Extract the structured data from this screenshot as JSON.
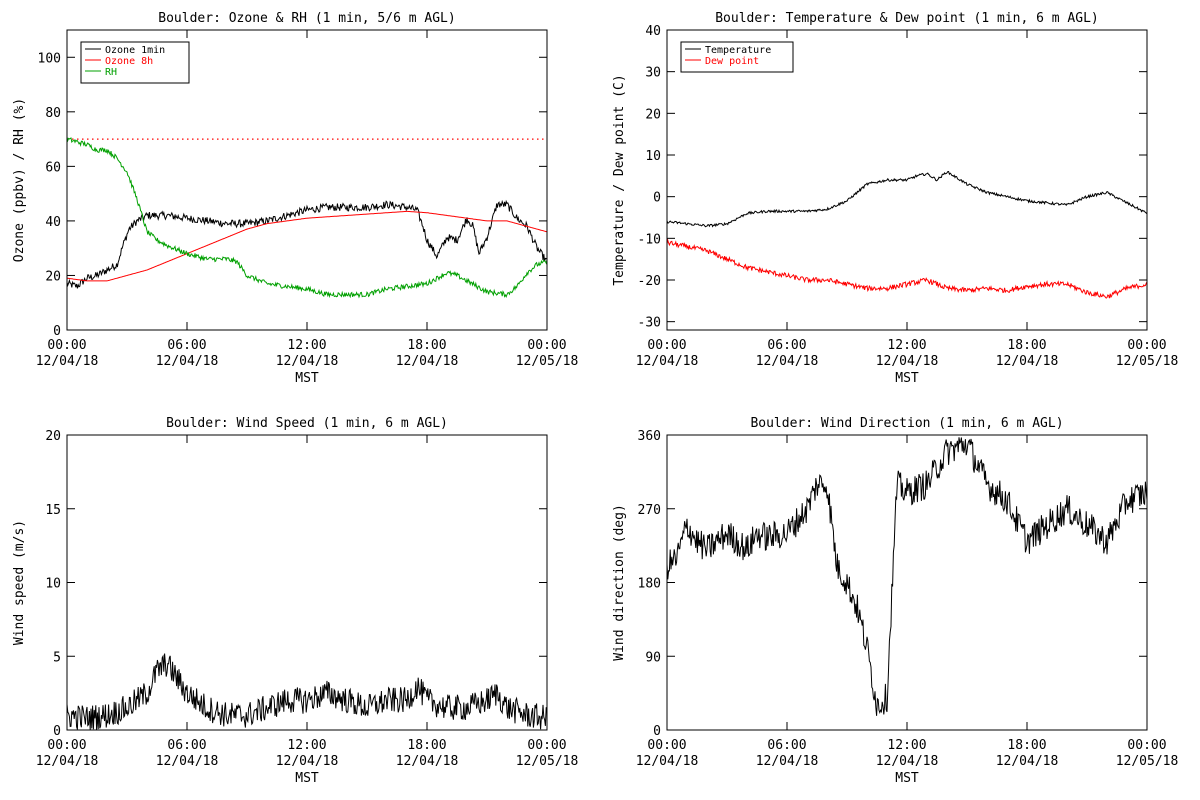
{
  "x_ticks": [
    {
      "time": "00:00",
      "date": "12/04/18"
    },
    {
      "time": "06:00",
      "date": "12/04/18"
    },
    {
      "time": "12:00",
      "date": "12/04/18"
    },
    {
      "time": "18:00",
      "date": "12/04/18"
    },
    {
      "time": "00:00",
      "date": "12/05/18"
    }
  ],
  "chart_data": [
    {
      "type": "line",
      "title": "Boulder: Ozone & RH (1 min, 5/6 m AGL)",
      "xlabel": "MST",
      "ylabel": "Ozone (ppbv) / RH (%)",
      "xlim_hours": [
        0,
        24
      ],
      "ylim": [
        0,
        110
      ],
      "yticks": [
        0,
        20,
        40,
        60,
        80,
        100
      ],
      "legend_position": "top-left",
      "reference_line": {
        "y": 70,
        "color": "#ff0000",
        "style": "dotted"
      },
      "series": [
        {
          "name": "Ozone 1min",
          "color": "#000000",
          "noise": 1.4,
          "points": [
            [
              0,
              17
            ],
            [
              0.5,
              16
            ],
            [
              1,
              19
            ],
            [
              1.5,
              20
            ],
            [
              2,
              22
            ],
            [
              2.5,
              24
            ],
            [
              2.8,
              31
            ],
            [
              3.1,
              37
            ],
            [
              3.5,
              40
            ],
            [
              4,
              42
            ],
            [
              5,
              42
            ],
            [
              6,
              41
            ],
            [
              7,
              40
            ],
            [
              8,
              39
            ],
            [
              9,
              39
            ],
            [
              10,
              40
            ],
            [
              11,
              42
            ],
            [
              12,
              44
            ],
            [
              13,
              45
            ],
            [
              14,
              45
            ],
            [
              15,
              45
            ],
            [
              16,
              46
            ],
            [
              17,
              45
            ],
            [
              17.5,
              44
            ],
            [
              17.8,
              38
            ],
            [
              18,
              33
            ],
            [
              18.5,
              27
            ],
            [
              19,
              34
            ],
            [
              19.5,
              33
            ],
            [
              20,
              41
            ],
            [
              20.3,
              38
            ],
            [
              20.6,
              28
            ],
            [
              21,
              34
            ],
            [
              21.5,
              46
            ],
            [
              22,
              46
            ],
            [
              22.5,
              41
            ],
            [
              23,
              38
            ],
            [
              23.5,
              30
            ],
            [
              24,
              25
            ]
          ]
        },
        {
          "name": "Ozone 8h",
          "color": "#ff0000",
          "noise": 0,
          "points": [
            [
              0,
              19
            ],
            [
              1,
              18
            ],
            [
              2,
              18
            ],
            [
              3,
              20
            ],
            [
              4,
              22
            ],
            [
              5,
              25
            ],
            [
              6,
              28
            ],
            [
              7,
              31
            ],
            [
              8,
              34
            ],
            [
              9,
              37
            ],
            [
              10,
              39
            ],
            [
              11,
              40
            ],
            [
              12,
              41
            ],
            [
              13,
              41.5
            ],
            [
              14,
              42
            ],
            [
              15,
              42.5
            ],
            [
              16,
              43
            ],
            [
              17,
              43.5
            ],
            [
              18,
              43
            ],
            [
              19,
              42
            ],
            [
              20,
              41
            ],
            [
              21,
              40
            ],
            [
              22,
              40
            ],
            [
              23,
              38
            ],
            [
              24,
              36
            ]
          ]
        },
        {
          "name": "RH",
          "color": "#00a000",
          "noise": 0.9,
          "points": [
            [
              0,
              70
            ],
            [
              0.5,
              69
            ],
            [
              1,
              68
            ],
            [
              1.5,
              66
            ],
            [
              2,
              66
            ],
            [
              2.5,
              63
            ],
            [
              3,
              58
            ],
            [
              3.5,
              48
            ],
            [
              4,
              36
            ],
            [
              4.5,
              33
            ],
            [
              5,
              31
            ],
            [
              6,
              28
            ],
            [
              7,
              26
            ],
            [
              8,
              26
            ],
            [
              8.5,
              25
            ],
            [
              9,
              20
            ],
            [
              10,
              17
            ],
            [
              11,
              16
            ],
            [
              12,
              15
            ],
            [
              13,
              13
            ],
            [
              14,
              13
            ],
            [
              15,
              13
            ],
            [
              16,
              15
            ],
            [
              17,
              16
            ],
            [
              18,
              17
            ],
            [
              19,
              21
            ],
            [
              19.5,
              20
            ],
            [
              20,
              18
            ],
            [
              20.5,
              16
            ],
            [
              21,
              14
            ],
            [
              22,
              13
            ],
            [
              22.5,
              16
            ],
            [
              23,
              21
            ],
            [
              23.5,
              24
            ],
            [
              24,
              25
            ]
          ]
        }
      ]
    },
    {
      "type": "line",
      "title": "Boulder: Temperature & Dew point (1 min, 6 m AGL)",
      "xlabel": "MST",
      "ylabel": "Temperature / Dew point (C)",
      "xlim_hours": [
        0,
        24
      ],
      "ylim": [
        -32,
        40
      ],
      "yticks": [
        -30,
        -20,
        -10,
        0,
        10,
        20,
        30,
        40
      ],
      "legend_position": "top-left",
      "series": [
        {
          "name": "Temperature",
          "color": "#000000",
          "noise": 0.3,
          "points": [
            [
              0,
              -6
            ],
            [
              1,
              -6.5
            ],
            [
              2,
              -7
            ],
            [
              3,
              -6.5
            ],
            [
              4,
              -4
            ],
            [
              5,
              -3.5
            ],
            [
              6,
              -3.5
            ],
            [
              7,
              -3.5
            ],
            [
              8,
              -3
            ],
            [
              9,
              -1
            ],
            [
              10,
              3
            ],
            [
              11,
              4
            ],
            [
              12,
              4
            ],
            [
              12.5,
              5
            ],
            [
              13,
              5.5
            ],
            [
              13.5,
              4
            ],
            [
              14,
              6
            ],
            [
              15,
              3
            ],
            [
              16,
              1
            ],
            [
              17,
              0
            ],
            [
              18,
              -1
            ],
            [
              19,
              -1.5
            ],
            [
              20,
              -2
            ],
            [
              21,
              0
            ],
            [
              22,
              1
            ],
            [
              23,
              -1.5
            ],
            [
              24,
              -4
            ]
          ]
        },
        {
          "name": "Dew point",
          "color": "#ff0000",
          "noise": 0.6,
          "points": [
            [
              0,
              -11
            ],
            [
              1,
              -12
            ],
            [
              2,
              -13
            ],
            [
              3,
              -15
            ],
            [
              4,
              -17
            ],
            [
              5,
              -18
            ],
            [
              6,
              -19
            ],
            [
              7,
              -20
            ],
            [
              8,
              -20
            ],
            [
              9,
              -21
            ],
            [
              10,
              -22
            ],
            [
              11,
              -22
            ],
            [
              12,
              -21
            ],
            [
              13,
              -20
            ],
            [
              14,
              -22
            ],
            [
              15,
              -22.5
            ],
            [
              16,
              -22
            ],
            [
              17,
              -22.5
            ],
            [
              18,
              -21.5
            ],
            [
              19,
              -21
            ],
            [
              20,
              -21
            ],
            [
              21,
              -23
            ],
            [
              22,
              -24
            ],
            [
              23,
              -22
            ],
            [
              24,
              -21
            ]
          ]
        }
      ]
    },
    {
      "type": "line",
      "title": "Boulder: Wind Speed (1 min, 6 m AGL)",
      "xlabel": "MST",
      "ylabel": "Wind speed (m/s)",
      "xlim_hours": [
        0,
        24
      ],
      "ylim": [
        0,
        20
      ],
      "yticks": [
        0,
        5,
        10,
        15,
        20
      ],
      "series": [
        {
          "color": "#000000",
          "noise": 0.9,
          "points": [
            [
              0,
              1
            ],
            [
              1,
              0.8
            ],
            [
              2,
              1
            ],
            [
              3,
              1.5
            ],
            [
              4,
              2.5
            ],
            [
              4.5,
              4
            ],
            [
              5,
              4.5
            ],
            [
              5.5,
              3.5
            ],
            [
              6,
              2.5
            ],
            [
              7,
              1.5
            ],
            [
              8,
              1
            ],
            [
              9,
              1
            ],
            [
              10,
              1.5
            ],
            [
              11,
              2
            ],
            [
              12,
              2
            ],
            [
              13,
              2.5
            ],
            [
              14,
              2
            ],
            [
              15,
              1.5
            ],
            [
              16,
              2
            ],
            [
              17,
              2
            ],
            [
              17.5,
              3
            ],
            [
              18,
              2
            ],
            [
              19,
              1.5
            ],
            [
              20,
              1.5
            ],
            [
              21,
              2
            ],
            [
              21.5,
              2.5
            ],
            [
              22,
              1.5
            ],
            [
              23,
              1
            ],
            [
              24,
              0.8
            ]
          ]
        }
      ]
    },
    {
      "type": "line",
      "title": "Boulder: Wind Direction (1 min, 6 m AGL)",
      "xlabel": "MST",
      "ylabel": "Wind direction (deg)",
      "xlim_hours": [
        0,
        24
      ],
      "ylim": [
        0,
        360
      ],
      "yticks": [
        0,
        90,
        180,
        270,
        360
      ],
      "series": [
        {
          "color": "#000000",
          "noise": 18,
          "points": [
            [
              0,
              200
            ],
            [
              0.5,
              210
            ],
            [
              1,
              250
            ],
            [
              1.5,
              230
            ],
            [
              2,
              220
            ],
            [
              2.5,
              230
            ],
            [
              3,
              240
            ],
            [
              3.5,
              230
            ],
            [
              4,
              220
            ],
            [
              4.5,
              240
            ],
            [
              5,
              235
            ],
            [
              6,
              240
            ],
            [
              7,
              270
            ],
            [
              7.5,
              300
            ],
            [
              8,
              300
            ],
            [
              8.5,
              200
            ],
            [
              9,
              180
            ],
            [
              9.5,
              150
            ],
            [
              10,
              100
            ],
            [
              10.5,
              30
            ],
            [
              11,
              40
            ],
            [
              11.5,
              300
            ],
            [
              12,
              290
            ],
            [
              13,
              300
            ],
            [
              14,
              340
            ],
            [
              15,
              350
            ],
            [
              16,
              300
            ],
            [
              17,
              280
            ],
            [
              18,
              230
            ],
            [
              19,
              250
            ],
            [
              20,
              270
            ],
            [
              21,
              250
            ],
            [
              22,
              230
            ],
            [
              23,
              280
            ],
            [
              24,
              290
            ]
          ]
        }
      ]
    }
  ]
}
